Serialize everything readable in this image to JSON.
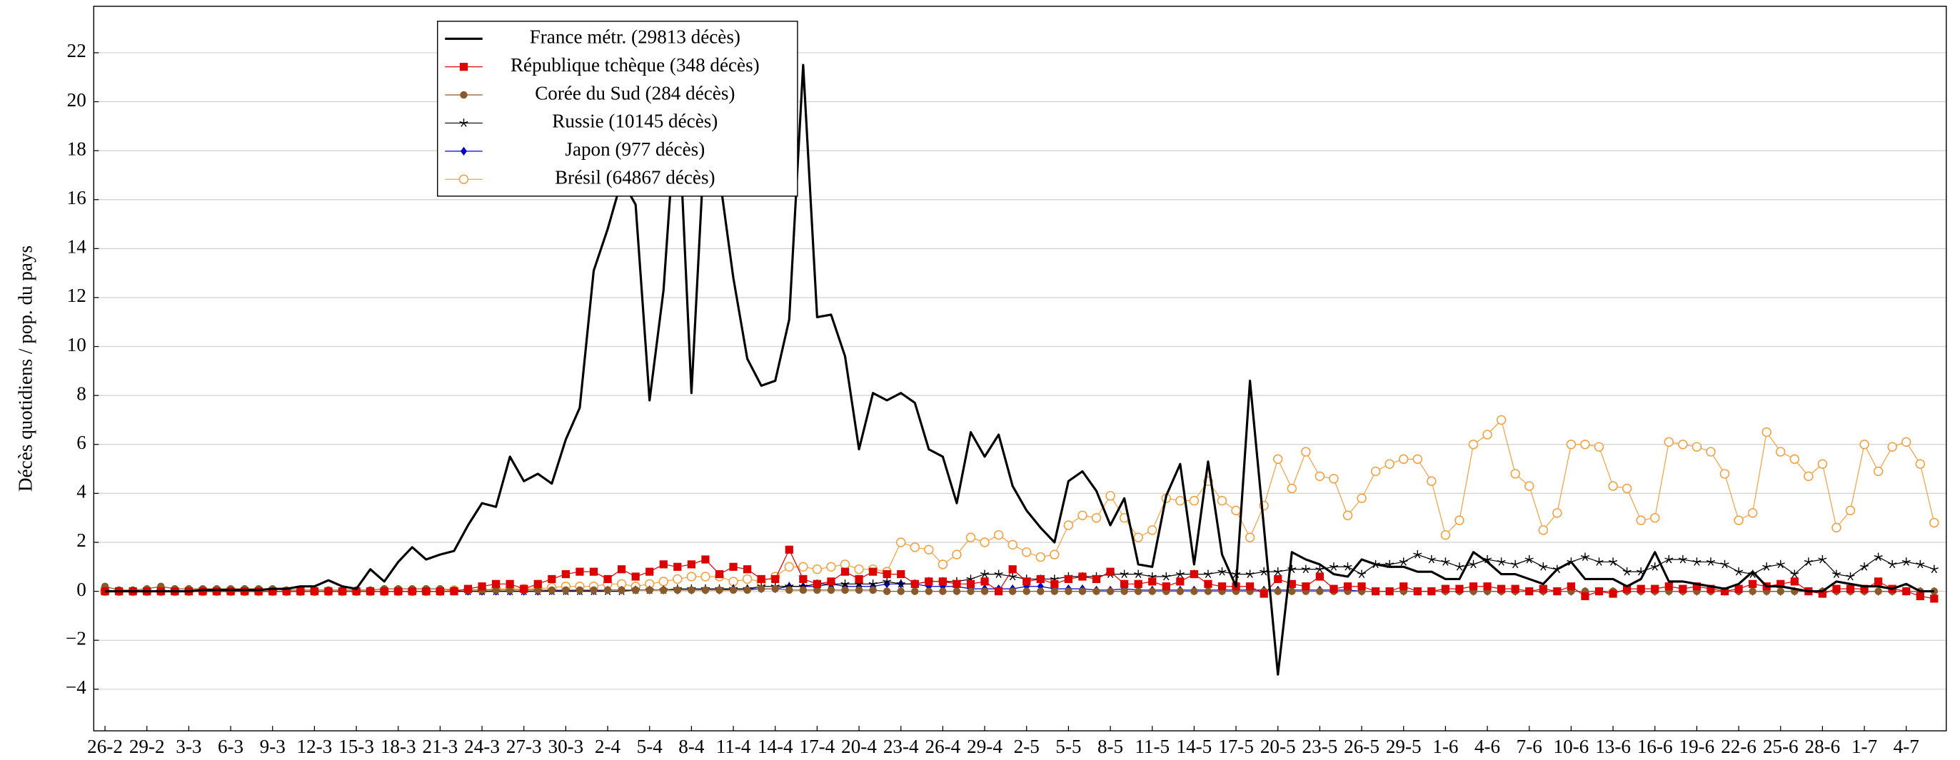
{
  "chart_data": {
    "type": "line",
    "y_label": "Décès quotidiens / pop. du pays",
    "categories": [
      "26-2",
      null,
      null,
      "29-2",
      null,
      null,
      "3-3",
      null,
      null,
      "6-3",
      null,
      null,
      "9-3",
      null,
      null,
      "12-3",
      null,
      null,
      "15-3",
      null,
      null,
      "18-3",
      null,
      null,
      "21-3",
      null,
      null,
      "24-3",
      null,
      null,
      "27-3",
      null,
      null,
      "30-3",
      null,
      null,
      "2-4",
      null,
      null,
      "5-4",
      null,
      null,
      "8-4",
      null,
      null,
      "11-4",
      null,
      null,
      "14-4",
      null,
      null,
      "17-4",
      null,
      null,
      "20-4",
      null,
      null,
      "23-4",
      null,
      null,
      "26-4",
      null,
      null,
      "29-4",
      null,
      null,
      "2-5",
      null,
      null,
      "5-5",
      null,
      null,
      "8-5",
      null,
      null,
      "11-5",
      null,
      null,
      "14-5",
      null,
      null,
      "17-5",
      null,
      null,
      "20-5",
      null,
      null,
      "23-5",
      null,
      null,
      "26-5",
      null,
      null,
      "29-5",
      null,
      null,
      "1-6",
      null,
      null,
      "4-6",
      null,
      null,
      "7-6",
      null,
      null,
      "10-6",
      null,
      null,
      "13-6",
      null,
      null,
      "16-6",
      null,
      null,
      "19-6",
      null,
      null,
      "22-6",
      null,
      null,
      "25-6",
      null,
      null,
      "28-6",
      null,
      null,
      "1-7",
      null,
      null,
      "4-7",
      null,
      null
    ],
    "series": [
      {
        "name": "France métr. (29813 décès)",
        "color": "#000000",
        "marker": "none",
        "values": [
          0,
          0,
          0,
          0,
          0,
          0,
          0,
          0.05,
          0.05,
          0.05,
          0.05,
          0.05,
          0.1,
          0.1,
          0.2,
          0.2,
          0.45,
          0.2,
          0.1,
          0.9,
          0.4,
          1.2,
          1.8,
          1.3,
          1.5,
          1.65,
          2.7,
          3.6,
          3.45,
          5.5,
          4.5,
          4.8,
          4.4,
          6.2,
          7.5,
          13.1,
          14.8,
          16.8,
          15.8,
          7.8,
          12.3,
          20.5,
          8.1,
          19,
          17,
          12.8,
          9.5,
          8.4,
          8.6,
          11.1,
          21.5,
          11.2,
          11.3,
          9.6,
          5.8,
          8.1,
          7.8,
          8.1,
          7.7,
          5.8,
          5.5,
          3.6,
          6.5,
          5.5,
          6.4,
          4.3,
          3.3,
          2.6,
          2.0,
          4.5,
          4.9,
          4.1,
          2.7,
          3.8,
          1.1,
          1.0,
          3.9,
          5.2,
          1.1,
          5.3,
          1.5,
          0.2,
          8.6,
          2.6,
          -3.4,
          1.6,
          1.3,
          1.1,
          0.7,
          0.6,
          1.3,
          1.1,
          1.0,
          1.0,
          0.8,
          0.8,
          0.5,
          0.5,
          1.6,
          1.2,
          0.7,
          0.7,
          0.5,
          0.3,
          0.9,
          1.2,
          0.5,
          0.5,
          0.5,
          0.2,
          0.5,
          1.6,
          0.4,
          0.4,
          0.3,
          0.2,
          0.1,
          0.3,
          0.8,
          0.2,
          0.2,
          0.1,
          0,
          0,
          0.4,
          0.3,
          0.2,
          0.2,
          0.1,
          0.3,
          0,
          0
        ]
      },
      {
        "name": "République tchèque (348 décès)",
        "color": "#dd0000",
        "marker": "square",
        "values": [
          0,
          0,
          0,
          0,
          0,
          0,
          0,
          0,
          0,
          0,
          0,
          0,
          0,
          0,
          0,
          0,
          0,
          0,
          0,
          0,
          0,
          0,
          0,
          0,
          0,
          0,
          0.1,
          0.2,
          0.3,
          0.3,
          0.1,
          0.3,
          0.5,
          0.7,
          0.8,
          0.8,
          0.5,
          0.9,
          0.6,
          0.8,
          1.1,
          1.0,
          1.1,
          1.3,
          0.7,
          1.0,
          0.9,
          0.5,
          0.5,
          1.7,
          0.5,
          0.3,
          0.4,
          0.8,
          0.5,
          0.8,
          0.7,
          0.7,
          0.3,
          0.4,
          0.4,
          0.3,
          0.3,
          0.4,
          0,
          0.9,
          0.4,
          0.5,
          0.3,
          0.5,
          0.6,
          0.5,
          0.8,
          0.3,
          0.3,
          0.4,
          0.2,
          0.4,
          0.7,
          0.3,
          0.2,
          0.2,
          0.2,
          -0.1,
          0.5,
          0.3,
          0.2,
          0.6,
          0.1,
          0.2,
          0.2,
          0,
          0,
          0.2,
          0,
          0,
          0.1,
          0.1,
          0.2,
          0.2,
          0.1,
          0.1,
          0,
          0.1,
          0,
          0.2,
          -0.2,
          0,
          -0.1,
          0.1,
          0.1,
          0.1,
          0.2,
          0.1,
          0.2,
          0.1,
          0,
          0.1,
          0.3,
          0.2,
          0.3,
          0.4,
          0,
          -0.1,
          0.1,
          0.1,
          0.1,
          0.4,
          0.1,
          0,
          -0.2,
          -0.3
        ]
      },
      {
        "name": "Corée du Sud (284 décès)",
        "color": "#8b5a2b",
        "marker": "circle",
        "values": [
          0.2,
          0.05,
          0.05,
          0.1,
          0.2,
          0.1,
          0.1,
          0.1,
          0.1,
          0.1,
          0.1,
          0.1,
          0.1,
          0.05,
          0.05,
          0.05,
          0.05,
          0.05,
          0.05,
          0.05,
          0.1,
          0.1,
          0.1,
          0.1,
          0.1,
          0.05,
          0.05,
          0.05,
          0.05,
          0.05,
          0.05,
          0.05,
          0.05,
          0.05,
          0.05,
          0.05,
          0.05,
          0.05,
          0.05,
          0.05,
          0.05,
          0.05,
          0.05,
          0.05,
          0.05,
          0.05,
          0.05,
          0.1,
          0.1,
          0.05,
          0.05,
          0.05,
          0.05,
          0.05,
          0.05,
          0.05,
          0,
          0,
          0,
          0,
          0,
          0,
          0,
          0,
          0,
          0,
          0,
          0,
          0,
          0,
          0,
          0,
          0,
          0,
          0,
          0,
          0,
          0,
          0,
          0,
          0,
          0,
          0,
          0,
          0,
          0,
          0,
          0,
          0,
          0,
          0,
          0,
          0,
          0,
          0,
          0,
          0,
          0,
          0,
          0,
          0,
          0,
          0,
          0,
          0,
          0,
          0,
          0,
          0,
          0,
          0,
          0,
          0,
          0,
          0,
          0,
          0,
          0,
          0,
          0,
          0,
          0,
          0,
          0,
          0,
          0,
          0,
          0,
          0,
          0,
          0,
          0
        ]
      },
      {
        "name": "Russie (10145 décès)",
        "color": "#000000",
        "marker": "star",
        "values": [
          0,
          0,
          0,
          0,
          0,
          0,
          0,
          0,
          0,
          0,
          0,
          0,
          0,
          0,
          0,
          0,
          0,
          0,
          0,
          0,
          0,
          0,
          0,
          0,
          0,
          0,
          0,
          0,
          0,
          0,
          0,
          0,
          0,
          0,
          0,
          0,
          0,
          0,
          0.05,
          0.05,
          0.05,
          0.1,
          0.1,
          0.1,
          0.1,
          0.1,
          0.1,
          0.2,
          0.2,
          0.2,
          0.2,
          0.3,
          0.3,
          0.3,
          0.3,
          0.3,
          0.4,
          0.3,
          0.3,
          0.4,
          0.4,
          0.4,
          0.5,
          0.7,
          0.7,
          0.6,
          0.5,
          0.5,
          0.5,
          0.6,
          0.6,
          0.6,
          0.7,
          0.7,
          0.7,
          0.6,
          0.6,
          0.7,
          0.7,
          0.7,
          0.8,
          0.7,
          0.7,
          0.8,
          0.8,
          0.9,
          0.9,
          0.9,
          1.0,
          1.0,
          0.7,
          1.1,
          1.1,
          1.2,
          1.5,
          1.3,
          1.2,
          1.0,
          1.1,
          1.3,
          1.2,
          1.1,
          1.3,
          1.0,
          0.9,
          1.2,
          1.4,
          1.2,
          1.2,
          0.8,
          0.8,
          1.0,
          1.3,
          1.3,
          1.2,
          1.2,
          1.1,
          0.8,
          0.7,
          1.0,
          1.1,
          0.7,
          1.2,
          1.3,
          0.7,
          0.6,
          1.0,
          1.4,
          1.1,
          1.2,
          1.1,
          0.9
        ]
      },
      {
        "name": "Japon (977 décès)",
        "color": "#0000cc",
        "marker": "diamond",
        "values": [
          0,
          0,
          0,
          0,
          0,
          0,
          0,
          0,
          0,
          0,
          0,
          0,
          0,
          0,
          0,
          0,
          0,
          0,
          0,
          0,
          0,
          0,
          0,
          0,
          0,
          0,
          0,
          0,
          0,
          0,
          0,
          0,
          0.02,
          0.02,
          0.02,
          0.02,
          0.05,
          0.05,
          0.05,
          0.05,
          0.05,
          0.05,
          0.05,
          0.05,
          0.05,
          0.1,
          0.1,
          0.1,
          0.1,
          0.2,
          0.2,
          0.2,
          0.3,
          0.2,
          0.2,
          0.2,
          0.3,
          0.3,
          0.3,
          0.2,
          0.2,
          0.2,
          0.1,
          0.1,
          0.1,
          0.1,
          0.2,
          0.2,
          0.1,
          0.1,
          0.1,
          0.05,
          0.05,
          0.1,
          0.05,
          0.05,
          0.05,
          0.05,
          0.05,
          0.05,
          0.05,
          0.05,
          0.05,
          0.05,
          0.05,
          0.05,
          0.05,
          0.05,
          0.05,
          0.05,
          0,
          0,
          0,
          0,
          0,
          0,
          0,
          0,
          0,
          0,
          0,
          0,
          0,
          0,
          0,
          0,
          0,
          0,
          0,
          0,
          0,
          0,
          0,
          0,
          0,
          0,
          0,
          0,
          0,
          0,
          0,
          0,
          0,
          0,
          0,
          0,
          0,
          0,
          0,
          0,
          0,
          0
        ]
      },
      {
        "name": "Brésil (64867 décès)",
        "color": "#f5a142",
        "marker": "open-circle",
        "values": [
          0,
          0,
          0,
          0,
          0,
          0,
          0,
          0,
          0,
          0,
          0,
          0,
          0,
          0,
          0,
          0,
          0,
          0,
          0,
          0,
          0,
          0,
          0,
          0,
          0,
          0.05,
          0.05,
          0.05,
          0.1,
          0.1,
          0.1,
          0.1,
          0.15,
          0.2,
          0.2,
          0.2,
          0.3,
          0.3,
          0.2,
          0.3,
          0.4,
          0.5,
          0.6,
          0.6,
          0.6,
          0.4,
          0.5,
          0.4,
          0.6,
          1.0,
          1.0,
          0.9,
          1.0,
          1.1,
          0.9,
          0.9,
          0.8,
          2.0,
          1.8,
          1.7,
          1.1,
          1.5,
          2.2,
          2.0,
          2.3,
          1.9,
          1.6,
          1.4,
          1.5,
          2.7,
          3.1,
          3.0,
          3.9,
          3.0,
          2.2,
          2.5,
          3.8,
          3.7,
          3.7,
          4.5,
          3.7,
          3.3,
          2.2,
          3.5,
          5.4,
          4.2,
          5.7,
          4.7,
          4.6,
          3.1,
          3.8,
          4.9,
          5.2,
          5.4,
          5.4,
          4.5,
          2.3,
          2.9,
          6.0,
          6.4,
          7.0,
          4.8,
          4.3,
          2.5,
          3.2,
          6.0,
          6.0,
          5.9,
          4.3,
          4.2,
          2.9,
          3.0,
          6.1,
          6.0,
          5.9,
          5.7,
          4.8,
          2.9,
          3.2,
          6.5,
          5.7,
          5.4,
          4.7,
          5.2,
          2.6,
          3.3,
          6.0,
          4.9,
          5.9,
          6.1,
          5.2,
          2.8
        ]
      }
    ],
    "ylim": [
      -5.7,
      23.9
    ],
    "yticks": [
      {
        "value": -4,
        "label": "−4"
      },
      {
        "value": -2,
        "label": "−2"
      },
      0,
      2,
      4,
      6,
      8,
      10,
      12,
      14,
      16,
      18,
      20,
      22
    ],
    "grid": true,
    "legend": "upper-left"
  }
}
